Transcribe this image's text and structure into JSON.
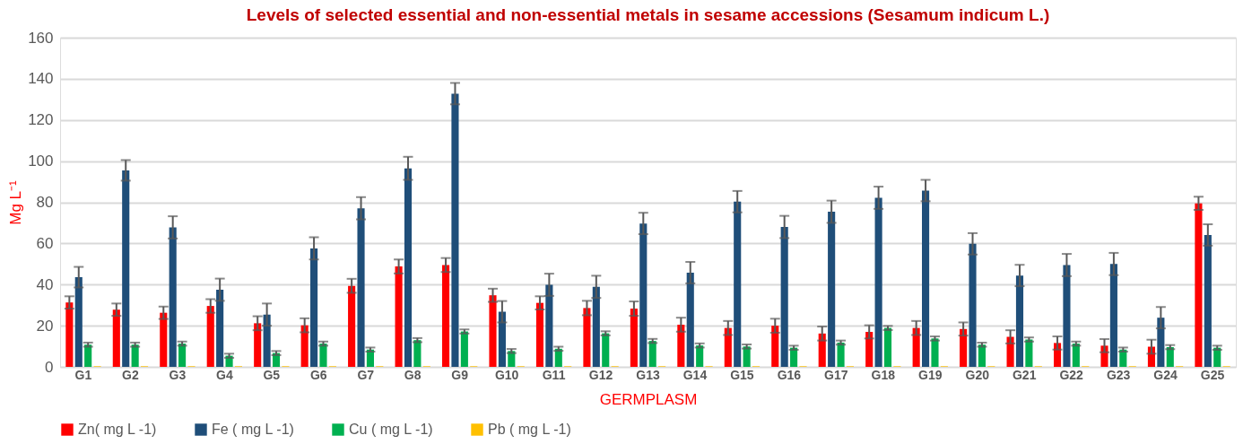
{
  "chart_data": {
    "type": "bar",
    "title": "Levels of selected essential and non-essential metals in sesame accessions (Sesamum indicum L.)",
    "xlabel": "GERMPLASM",
    "ylabel": "Mg L⁻¹",
    "categories": [
      "G1",
      "G2",
      "G3",
      "G4",
      "G5",
      "G6",
      "G7",
      "G8",
      "G9",
      "G10",
      "G11",
      "G12",
      "G13",
      "G14",
      "G15",
      "G16",
      "G17",
      "G18",
      "G19",
      "G20",
      "G21",
      "G22",
      "G23",
      "G24",
      "G25"
    ],
    "series": [
      {
        "name": "Zn( mg L -1)",
        "color": "#ff0000",
        "values": [
          31.3,
          27.8,
          26.3,
          29.6,
          21.2,
          20.2,
          39.4,
          48.8,
          49.5,
          34.8,
          31.1,
          28.6,
          28.3,
          20.5,
          18.9,
          20.0,
          16.2,
          17.0,
          18.9,
          18.4,
          14.6,
          11.6,
          10.3,
          9.8,
          79.5
        ],
        "errors": [
          3,
          3,
          3,
          3.3,
          3.4,
          3.4,
          3.4,
          3.4,
          3.4,
          3.2,
          3.2,
          3.5,
          3.5,
          3.4,
          3.4,
          3.4,
          3.4,
          3.2,
          3.4,
          3.2,
          3.2,
          3.2,
          3.2,
          3.4,
          3.2
        ]
      },
      {
        "name": "Fe ( mg L -1)",
        "color": "#1f4e79",
        "values": [
          43.6,
          95.5,
          67.8,
          37.5,
          25.4,
          57.6,
          77.1,
          96.5,
          132.8,
          26.8,
          39.9,
          38.9,
          69.7,
          45.8,
          80.3,
          68.0,
          75.4,
          82.2,
          85.7,
          59.8,
          44.4,
          49.5,
          50.0,
          23.9,
          64.1
        ],
        "errors": [
          5,
          5,
          5.4,
          5.4,
          5.4,
          5.4,
          5.4,
          5.6,
          5.2,
          5.2,
          5.4,
          5.4,
          5.2,
          5.2,
          5.2,
          5.4,
          5.4,
          5.4,
          5.2,
          5.2,
          5.2,
          5.4,
          5.4,
          5.2,
          5.2
        ]
      },
      {
        "name": "Cu ( mg L -1)",
        "color": "#00b050",
        "values": [
          10.8,
          10.8,
          11.3,
          5.4,
          6.7,
          11.3,
          8.4,
          13.0,
          17.2,
          7.7,
          8.8,
          16.3,
          12.6,
          10.4,
          9.9,
          9.3,
          11.8,
          18.9,
          13.8,
          10.8,
          13.3,
          11.3,
          8.4,
          9.6,
          9.3
        ],
        "errors": [
          1,
          1,
          1,
          1,
          1,
          1,
          1,
          1,
          1,
          1,
          1,
          1,
          1,
          1,
          1,
          1,
          1,
          1,
          1,
          1,
          1,
          1,
          1,
          1,
          1
        ]
      },
      {
        "name": "Pb ( mg L -1)",
        "color": "#ffc000",
        "values": [
          0.3,
          0.3,
          0.3,
          0.3,
          0.3,
          0.3,
          0.3,
          0.3,
          0.3,
          0.3,
          0.3,
          0.3,
          0.3,
          0.3,
          0.3,
          0.3,
          0.3,
          0.3,
          0.3,
          0.3,
          0.3,
          0.3,
          0.3,
          0.3,
          0.3
        ]
      }
    ],
    "ylim": [
      0,
      160
    ],
    "yticks": [
      0,
      20,
      40,
      60,
      80,
      100,
      120,
      140,
      160
    ],
    "grid": "y",
    "legend": "bottom"
  }
}
